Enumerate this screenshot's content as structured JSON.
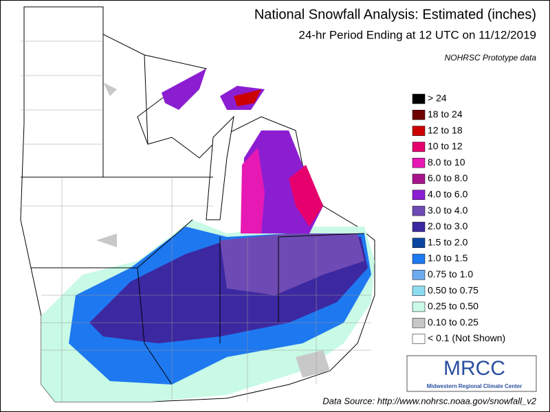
{
  "header": {
    "title": "National Snowfall Analysis: Estimated (inches)",
    "subtitle": "24-hr Period Ending at 12 UTC on 11/12/2019",
    "note": "NOHRSC Prototype data"
  },
  "legend": {
    "items": [
      {
        "label": "> 24",
        "color": "#000000"
      },
      {
        "label": "18 to 24",
        "color": "#6e0000"
      },
      {
        "label": "12 to 18",
        "color": "#cc0000"
      },
      {
        "label": "10 to 12",
        "color": "#e6006e"
      },
      {
        "label": "8.0 to 10",
        "color": "#e619b4"
      },
      {
        "label": "6.0 to 8.0",
        "color": "#a8148c"
      },
      {
        "label": "4.0 to 6.0",
        "color": "#8c1ed2"
      },
      {
        "label": "3.0 to 4.0",
        "color": "#6e4bb4"
      },
      {
        "label": "2.0 to 3.0",
        "color": "#3c28a0"
      },
      {
        "label": "1.5 to 2.0",
        "color": "#0a46a0"
      },
      {
        "label": "1.0 to 1.5",
        "color": "#1e78f0"
      },
      {
        "label": "0.75 to 1.0",
        "color": "#6eaaf0"
      },
      {
        "label": "0.50 to 0.75",
        "color": "#8cdcf0"
      },
      {
        "label": "0.25 to 0.50",
        "color": "#c8fae6"
      },
      {
        "label": "0.10 to 0.25",
        "color": "#c8c8c8"
      },
      {
        "label": "< 0.1 (Not Shown)",
        "color": "#ffffff"
      }
    ]
  },
  "logo": {
    "text": "MRCC",
    "subtitle": "Midwestern Regional Climate Center"
  },
  "source": "Data Source: http://www.nohrsc.noaa.gov/snowfall_v2"
}
